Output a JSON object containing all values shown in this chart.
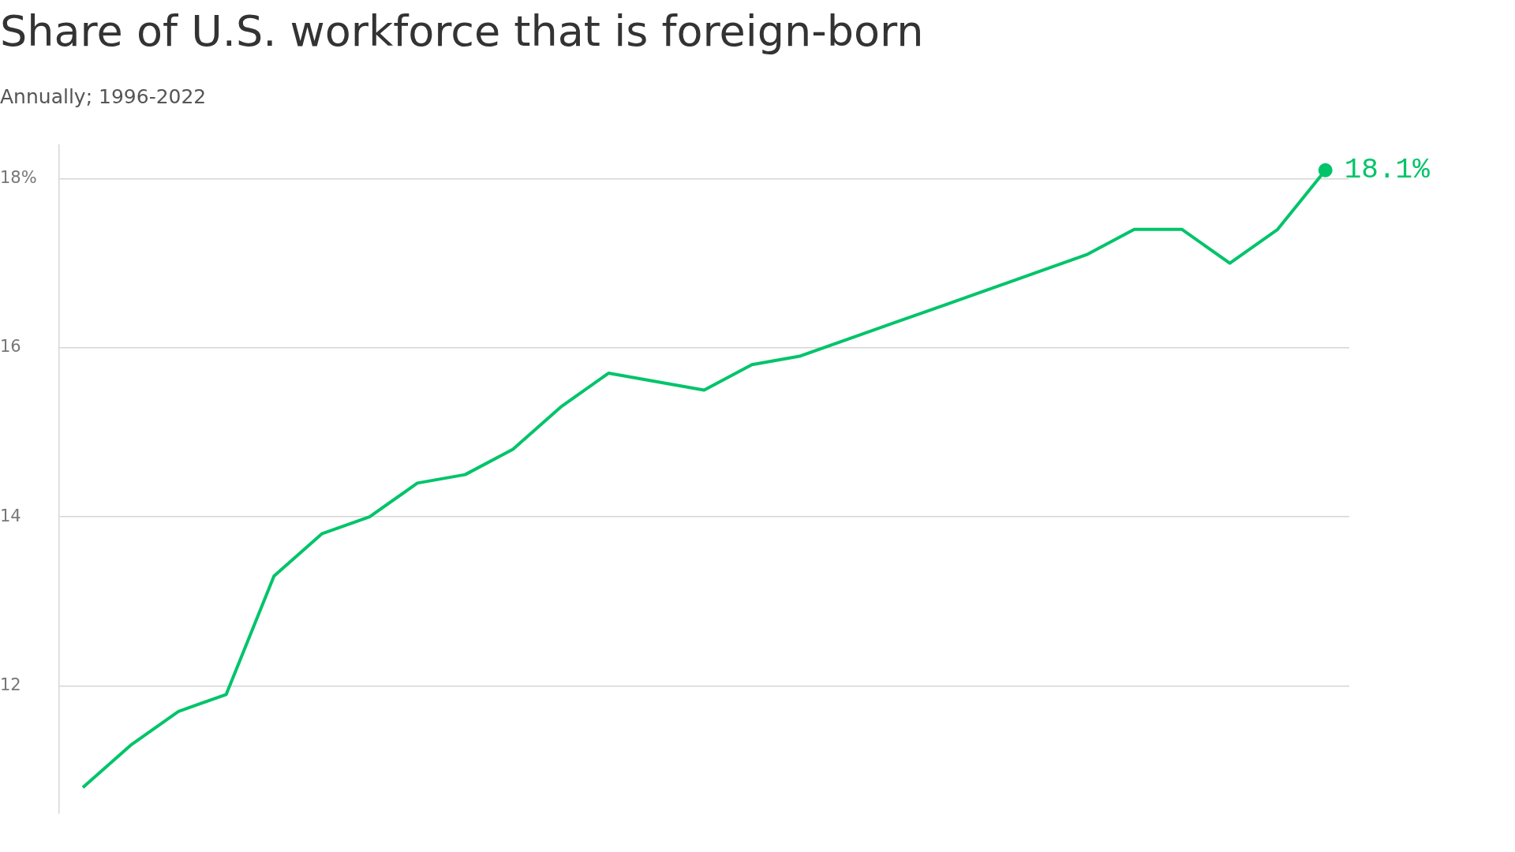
{
  "chart_data": {
    "type": "line",
    "title": "Share of U.S. workforce that is foreign-born",
    "subtitle": "Annually; 1996-2022",
    "categories": [
      null,
      null,
      null,
      null,
      null,
      null,
      null,
      null,
      null,
      null,
      null,
      null,
      null,
      null,
      null,
      null,
      null,
      null,
      null,
      null,
      null,
      null,
      null,
      null,
      null,
      null,
      null
    ],
    "series": [
      {
        "color": "#00c46a",
        "values": [
          10.8,
          11.3,
          11.7,
          11.9,
          13.3,
          13.8,
          14.0,
          14.4,
          14.5,
          14.8,
          15.3,
          15.7,
          15.6,
          15.5,
          15.8,
          15.9,
          16.1,
          16.3,
          16.5,
          16.7,
          16.9,
          17.1,
          17.4,
          17.4,
          17.0,
          17.4,
          18.1
        ],
        "value_labels": [
          null,
          null,
          null,
          null,
          null,
          null,
          null,
          null,
          null,
          null,
          null,
          null,
          null,
          null,
          null,
          null,
          null,
          null,
          null,
          null,
          null,
          null,
          null,
          null,
          null,
          null,
          "18.1%"
        ]
      }
    ],
    "ylim": [
      10.5,
      18.4
    ],
    "yticks": [
      {
        "value": 18,
        "label": "18%"
      },
      16,
      14,
      12
    ],
    "grid": "y",
    "legend": false,
    "tick_labels": "y"
  }
}
